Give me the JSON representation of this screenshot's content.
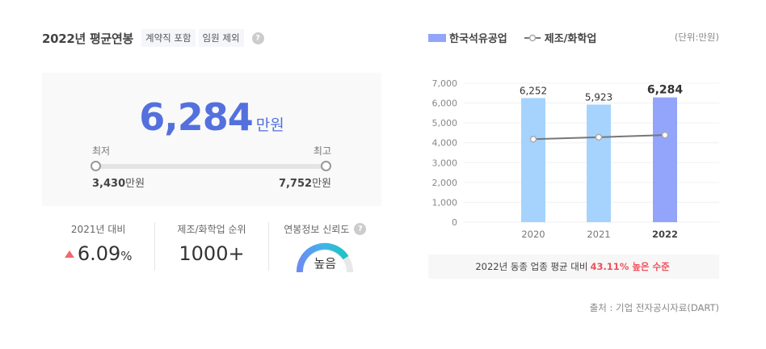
{
  "header": {
    "title": "2022년 평균연봉",
    "tags": [
      "계약직 포함",
      "임원 제외"
    ],
    "help_icon": "question-circle-icon"
  },
  "summary": {
    "value": "6,284",
    "unit": "만원",
    "min_label": "최저",
    "max_label": "최고",
    "min_value": "3,430",
    "max_value": "7,752",
    "range_unit": "만원"
  },
  "stats": [
    {
      "label": "2021년 대비",
      "value": "6.09",
      "suffix": "%",
      "direction": "up",
      "color": "#f0696d"
    },
    {
      "label": "제조/화학업 순위",
      "value": "1000+"
    },
    {
      "label": "연봉정보 신뢰도",
      "value": "높음",
      "help_icon": "question-circle-icon"
    }
  ],
  "legend": {
    "company": "한국석유공업",
    "industry": "제조/화학업",
    "unit_note": "(단위:만원)"
  },
  "compare": {
    "prefix": "2022년 동종 업종 평균 대비",
    "highlight": "43.11% 높은 수준"
  },
  "source": "출처 : 기업 전자공시자료(DART)",
  "chart_data": {
    "type": "bar",
    "categories": [
      "2020",
      "2021",
      "2022"
    ],
    "series": [
      {
        "name": "한국석유공업",
        "type": "bar",
        "values": [
          6252,
          5923,
          6284
        ],
        "labels": [
          "6,252",
          "5,923",
          "6,284"
        ],
        "colors": [
          "#a5d3fd",
          "#a5d3fd",
          "#92a5fb"
        ]
      },
      {
        "name": "제조/화학업",
        "type": "line",
        "values": [
          4180,
          4280,
          4390
        ],
        "color": "#777777"
      }
    ],
    "yticks": [
      "0",
      "1,000",
      "2,000",
      "3,000",
      "4,000",
      "5,000",
      "6,000",
      "7,000"
    ],
    "ylim": [
      0,
      7000
    ],
    "grid": true,
    "legend_position": "top",
    "title": "",
    "xlabel": "",
    "ylabel": ""
  }
}
